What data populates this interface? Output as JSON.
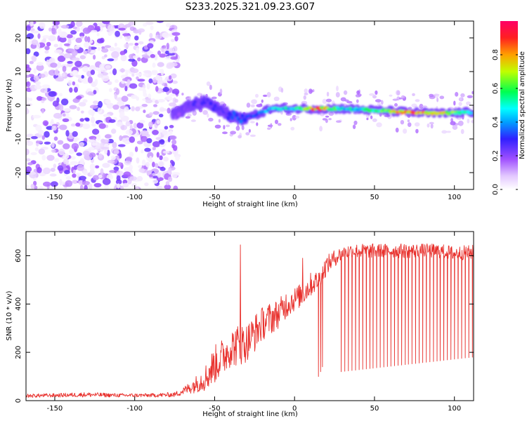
{
  "title": "S233.2025.321.09.23.G07",
  "chart_data": [
    {
      "type": "heatmap",
      "xlabel": "Height of straight line (km)",
      "ylabel": "Frequency (Hz)",
      "xlim": [
        -168,
        112
      ],
      "ylim": [
        -25,
        25
      ],
      "xticks": [
        -150,
        -100,
        -50,
        0,
        50,
        100
      ],
      "yticks": [
        -20,
        -10,
        0,
        10,
        20
      ],
      "colorbar": {
        "label": "Normalized spectral amplitude",
        "range": [
          0,
          1
        ],
        "ticks": [
          "0.0",
          "0.2",
          "0.4",
          "0.6",
          "0.8"
        ],
        "tick_values": [
          0.0,
          0.2,
          0.4,
          0.6,
          0.8
        ]
      },
      "noise_region": {
        "x_range": [
          -168,
          -75
        ],
        "y_range": [
          -25,
          25
        ],
        "amplitude_range": [
          0.02,
          0.15
        ]
      },
      "ridge": [
        {
          "x": -75,
          "freq": -3,
          "amp": 0.2
        },
        {
          "x": -65,
          "freq": 0,
          "amp": 0.25
        },
        {
          "x": -55,
          "freq": 1,
          "amp": 0.28
        },
        {
          "x": -45,
          "freq": -2,
          "amp": 0.25
        },
        {
          "x": -35,
          "freq": -4,
          "amp": 0.35
        },
        {
          "x": -25,
          "freq": -3,
          "amp": 0.35
        },
        {
          "x": -15,
          "freq": -1,
          "amp": 0.45
        },
        {
          "x": 0,
          "freq": -1,
          "amp": 0.55
        },
        {
          "x": 15,
          "freq": -1,
          "amp": 0.9
        },
        {
          "x": 30,
          "freq": -1,
          "amp": 0.5
        },
        {
          "x": 50,
          "freq": -1.5,
          "amp": 0.55
        },
        {
          "x": 70,
          "freq": -2,
          "amp": 0.9
        },
        {
          "x": 90,
          "freq": -2.5,
          "amp": 0.85
        },
        {
          "x": 112,
          "freq": -2,
          "amp": 0.4
        }
      ]
    },
    {
      "type": "line",
      "xlabel": "Height of straight line (km)",
      "ylabel": "SNR (10 * v/v)",
      "xlim": [
        -168,
        112
      ],
      "ylim": [
        0,
        700
      ],
      "xticks": [
        -150,
        -100,
        -50,
        0,
        50,
        100
      ],
      "yticks": [
        0,
        200,
        400,
        600
      ],
      "series": [
        {
          "name": "SNR",
          "color": "#e8302c",
          "x": [
            -168,
            -150,
            -130,
            -110,
            -90,
            -75,
            -68,
            -60,
            -55,
            -50,
            -45,
            -40,
            -35,
            -30,
            -25,
            -20,
            -15,
            -10,
            -5,
            0,
            5,
            10,
            15,
            20,
            25,
            30,
            35,
            40,
            50,
            60,
            70,
            80,
            90,
            100,
            112
          ],
          "values": [
            20,
            22,
            25,
            22,
            22,
            25,
            45,
            75,
            100,
            150,
            180,
            220,
            230,
            240,
            280,
            320,
            340,
            360,
            400,
            420,
            440,
            480,
            500,
            560,
            590,
            610,
            620,
            620,
            620,
            620,
            620,
            620,
            620,
            610,
            615
          ],
          "noise_amplitude": [
            8,
            8,
            10,
            8,
            8,
            10,
            20,
            40,
            60,
            80,
            80,
            80,
            90,
            80,
            80,
            70,
            70,
            60,
            60,
            50,
            50,
            50,
            40,
            40,
            35,
            30,
            30,
            30,
            30,
            30,
            30,
            30,
            30,
            30,
            30
          ]
        }
      ],
      "dropouts": [
        {
          "x_range": [
            14,
            18
          ],
          "count": 3,
          "to": [
            100,
            140
          ]
        },
        {
          "x_range": [
            28,
            112
          ],
          "count": 38,
          "to": [
            120,
            180
          ]
        }
      ],
      "spikes": [
        {
          "x": -34,
          "value": 645
        },
        {
          "x": 5,
          "value": 590
        }
      ]
    }
  ]
}
